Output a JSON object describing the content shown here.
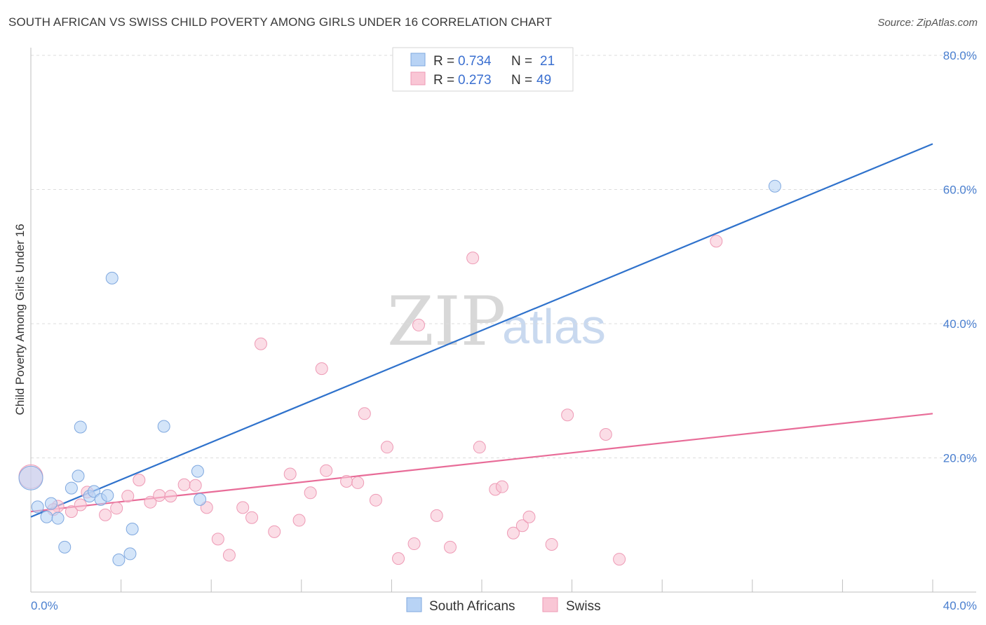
{
  "title": "SOUTH AFRICAN VS SWISS CHILD POVERTY AMONG GIRLS UNDER 16 CORRELATION CHART",
  "source": "Source: ZipAtlas.com",
  "watermark": {
    "part1": "ZIP",
    "part2": "atlas"
  },
  "legend": {
    "rows": [
      {
        "r_label": "R =",
        "r_value": "0.734",
        "n_label": "N =",
        "n_value": "21",
        "color": "#a9c8f2"
      },
      {
        "r_label": "R =",
        "r_value": "0.273",
        "n_label": "N =",
        "n_value": "49",
        "color": "#f7b8cb"
      }
    ]
  },
  "bottom_legend": [
    "South Africans",
    "Swiss"
  ],
  "colors": {
    "blue_fill": "#b8d3f5",
    "blue_stroke": "#7fa8df",
    "blue_line": "#2f72cc",
    "pink_fill": "#f9c6d5",
    "pink_stroke": "#ee9ab5",
    "pink_line": "#e86c98",
    "tick_text": "#4a7fcf",
    "grid": "#dcdcdc"
  },
  "chart_data": {
    "type": "scatter",
    "title": "SOUTH AFRICAN VS SWISS CHILD POVERTY AMONG GIRLS UNDER 16 CORRELATION CHART",
    "xlabel": "",
    "ylabel": "Child Poverty Among Girls Under 16",
    "xlim": [
      0,
      40
    ],
    "ylim": [
      0,
      80
    ],
    "x_tick_labels": [
      "0.0%",
      "40.0%"
    ],
    "y_ticks": [
      20,
      40,
      60,
      80
    ],
    "y_tick_labels": [
      "20.0%",
      "40.0%",
      "60.0%",
      "80.0%"
    ],
    "grid": true,
    "series": [
      {
        "name": "South Africans",
        "points": [
          [
            0.3,
            12.7
          ],
          [
            0.7,
            11.2
          ],
          [
            0.9,
            13.2
          ],
          [
            1.2,
            11.0
          ],
          [
            1.5,
            6.7
          ],
          [
            1.8,
            15.5
          ],
          [
            2.1,
            17.3
          ],
          [
            2.2,
            24.6
          ],
          [
            2.6,
            14.3
          ],
          [
            2.8,
            15.0
          ],
          [
            3.1,
            13.8
          ],
          [
            3.4,
            14.4
          ],
          [
            3.6,
            46.8
          ],
          [
            3.9,
            4.8
          ],
          [
            4.4,
            5.7
          ],
          [
            4.5,
            9.4
          ],
          [
            5.9,
            24.7
          ],
          [
            7.4,
            18.0
          ],
          [
            7.5,
            13.8
          ],
          [
            33.0,
            60.5
          ],
          [
            0.0,
            17.0
          ]
        ],
        "trend": {
          "x": [
            0,
            40
          ],
          "y": [
            11.2,
            66.8
          ]
        }
      },
      {
        "name": "Swiss",
        "points": [
          [
            0.0,
            17.2
          ],
          [
            1.2,
            12.8
          ],
          [
            1.8,
            12.0
          ],
          [
            2.2,
            13.0
          ],
          [
            2.5,
            14.9
          ],
          [
            3.3,
            11.5
          ],
          [
            3.8,
            12.5
          ],
          [
            4.3,
            14.3
          ],
          [
            4.8,
            16.7
          ],
          [
            5.3,
            13.4
          ],
          [
            5.7,
            14.4
          ],
          [
            6.2,
            14.3
          ],
          [
            6.8,
            16.0
          ],
          [
            7.3,
            15.9
          ],
          [
            7.8,
            12.6
          ],
          [
            8.3,
            7.9
          ],
          [
            8.8,
            5.5
          ],
          [
            9.4,
            12.6
          ],
          [
            9.8,
            11.1
          ],
          [
            10.2,
            37.0
          ],
          [
            10.8,
            9.0
          ],
          [
            11.5,
            17.6
          ],
          [
            11.9,
            10.7
          ],
          [
            12.4,
            14.8
          ],
          [
            12.9,
            33.3
          ],
          [
            13.1,
            18.1
          ],
          [
            14.0,
            16.5
          ],
          [
            14.5,
            16.3
          ],
          [
            14.8,
            26.6
          ],
          [
            15.3,
            13.7
          ],
          [
            15.8,
            21.6
          ],
          [
            16.3,
            5.0
          ],
          [
            17.0,
            7.2
          ],
          [
            17.2,
            39.8
          ],
          [
            18.0,
            11.4
          ],
          [
            18.6,
            6.7
          ],
          [
            19.6,
            49.8
          ],
          [
            19.9,
            21.6
          ],
          [
            20.6,
            15.3
          ],
          [
            20.9,
            15.7
          ],
          [
            21.4,
            8.8
          ],
          [
            21.8,
            9.9
          ],
          [
            22.1,
            11.2
          ],
          [
            23.1,
            7.1
          ],
          [
            23.8,
            26.4
          ],
          [
            25.5,
            23.5
          ],
          [
            26.1,
            4.9
          ],
          [
            30.4,
            52.3
          ],
          [
            1.0,
            12.3
          ]
        ],
        "trend": {
          "x": [
            0,
            40
          ],
          "y": [
            12.0,
            26.6
          ]
        }
      }
    ]
  }
}
